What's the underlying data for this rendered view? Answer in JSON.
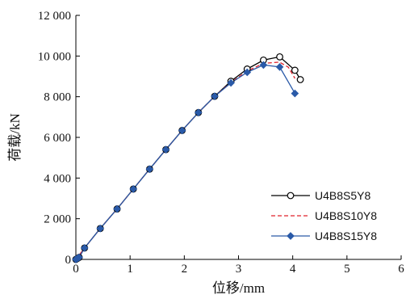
{
  "chart_data": {
    "type": "line",
    "title": "",
    "xlabel": "位移/mm",
    "ylabel": "荷载/kN",
    "xlim": [
      0,
      6
    ],
    "ylim": [
      0,
      12000
    ],
    "x_ticks": [
      0,
      1,
      2,
      3,
      4,
      5,
      6
    ],
    "x_tick_labels": [
      "0",
      "1",
      "2",
      "3",
      "4",
      "5",
      "6"
    ],
    "y_ticks": [
      0,
      2000,
      4000,
      6000,
      8000,
      10000,
      12000
    ],
    "y_tick_labels": [
      "0",
      "2 000",
      "4 000",
      "6 000",
      "8 000",
      "10 000",
      "12 000"
    ],
    "grid": false,
    "legend_position": "lower-right",
    "series": [
      {
        "name": "U4B8S5Y8",
        "color": "#000000",
        "line_style": "solid",
        "marker": "open-circle",
        "x": [
          0,
          0.03,
          0.06,
          0.16,
          0.45,
          0.76,
          1.06,
          1.36,
          1.66,
          1.96,
          2.26,
          2.56,
          2.86,
          3.16,
          3.46,
          3.76,
          4.04,
          4.14
        ],
        "y": [
          0,
          50,
          100,
          560,
          1520,
          2480,
          3460,
          4440,
          5400,
          6340,
          7220,
          8020,
          8760,
          9360,
          9800,
          9960,
          9300,
          8840
        ]
      },
      {
        "name": "U4B8S10Y8",
        "color": "#e0202a",
        "line_style": "dashed",
        "marker": "none",
        "x": [
          0,
          0.16,
          0.45,
          0.76,
          1.06,
          1.36,
          1.66,
          1.96,
          2.26,
          2.56,
          2.86,
          3.16,
          3.46,
          3.76,
          3.92,
          4.04
        ],
        "y": [
          0,
          560,
          1520,
          2480,
          3460,
          4440,
          5400,
          6340,
          7220,
          8020,
          8700,
          9260,
          9640,
          9700,
          9450,
          8900
        ]
      },
      {
        "name": "U4B8S15Y8",
        "color": "#2a5aa8",
        "line_style": "solid",
        "marker": "filled-diamond",
        "x": [
          0,
          0.03,
          0.06,
          0.16,
          0.45,
          0.76,
          1.06,
          1.36,
          1.66,
          1.96,
          2.26,
          2.56,
          2.86,
          3.16,
          3.46,
          3.76,
          4.04
        ],
        "y": [
          0,
          50,
          100,
          560,
          1520,
          2480,
          3460,
          4440,
          5400,
          6340,
          7220,
          8020,
          8680,
          9200,
          9560,
          9460,
          8160
        ]
      }
    ]
  }
}
